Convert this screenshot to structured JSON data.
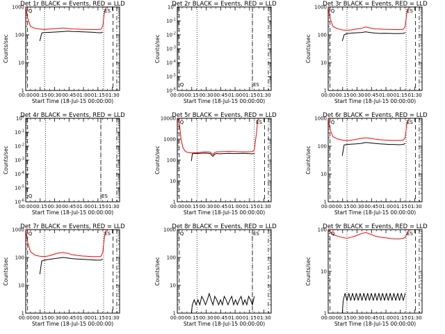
{
  "chart_data": [
    {
      "type": "line",
      "title": "Det 1r  BLACK = Events, RED = LLD",
      "xlabel": "Start Time (18-Jul-15 00:00:00)",
      "ylabel": "Counts/sec",
      "yscale": "log",
      "ylim": [
        1,
        1000
      ],
      "ytick_labels": [
        "1",
        "10",
        "100",
        "1000"
      ],
      "xlim": [
        0,
        100
      ],
      "xtick_labels": [
        "00:00",
        "00:15",
        "00:30",
        "00:45",
        "01:00",
        "01:15",
        "01:30"
      ],
      "markers": {
        "dash": [
          2,
          93
        ],
        "dot": [
          20,
          83
        ],
        "dashdot": [
          97
        ],
        "labels": [
          {
            "text": "Q",
            "x": 2
          },
          {
            "text": "ES",
            "x": 83
          }
        ]
      },
      "series": [
        {
          "color": "#000000",
          "x": [
            15,
            17,
            18,
            20,
            25,
            30,
            35,
            40,
            45,
            50,
            55,
            60,
            65,
            70,
            75,
            80,
            82
          ],
          "y": [
            60,
            115,
            118,
            120,
            122,
            125,
            128,
            130,
            135,
            132,
            130,
            128,
            126,
            124,
            120,
            118,
            125
          ]
        },
        {
          "color": "#ff0000",
          "x": [
            0,
            2,
            5,
            10,
            15,
            20,
            25,
            30,
            35,
            40,
            45,
            50,
            55,
            60,
            65,
            70,
            75,
            80,
            82,
            84,
            86
          ],
          "y": [
            1000,
            400,
            200,
            170,
            160,
            155,
            160,
            165,
            170,
            175,
            168,
            162,
            160,
            158,
            156,
            155,
            154,
            158,
            200,
            700,
            1000
          ]
        }
      ]
    },
    {
      "type": "line",
      "title": "Det 2r  BLACK = Events, RED = LLD",
      "xlabel": "Start Time (18-Jul-15 00:00:00)",
      "ylabel": "Counts/sec",
      "yscale": "log",
      "ylim": [
        1e-06,
        1
      ],
      "ytick_labels": [
        "10^-6",
        "10^-5",
        "10^-4",
        "10^-3",
        "10^-2",
        "10^-1",
        "10^0"
      ],
      "xlim": [
        0,
        100
      ],
      "xtick_labels": [
        "00:00",
        "00:15",
        "00:30",
        "00:45",
        "01:00",
        "01:15",
        "01:30"
      ],
      "markers": {
        "dash": [
          2,
          80
        ],
        "dot": [
          21,
          80
        ],
        "dashdot": [
          97
        ],
        "labels": [
          {
            "text": "Q",
            "x": 2
          },
          {
            "text": "ES",
            "x": 80
          }
        ]
      },
      "series": []
    },
    {
      "type": "line",
      "title": "Det 3r  BLACK = Events, RED = LLD",
      "xlabel": "Start Time (18-Jul-15 00:00:00)",
      "ylabel": "Counts/sec",
      "yscale": "log",
      "ylim": [
        1,
        1000
      ],
      "ytick_labels": [
        "1",
        "10",
        "100",
        "1000"
      ],
      "xlim": [
        0,
        100
      ],
      "xtick_labels": [
        "00:00",
        "00:15",
        "00:30",
        "00:45",
        "01:00",
        "01:15",
        "01:30"
      ],
      "markers": {
        "dash": [
          2,
          93
        ],
        "dot": [
          20,
          83
        ],
        "dashdot": [
          97
        ],
        "labels": [
          {
            "text": "Q",
            "x": 2
          },
          {
            "text": "ES",
            "x": 83
          }
        ]
      },
      "series": [
        {
          "color": "#000000",
          "x": [
            15,
            17,
            20,
            25,
            30,
            35,
            40,
            45,
            50,
            55,
            60,
            65,
            70,
            75,
            80,
            82
          ],
          "y": [
            60,
            100,
            110,
            115,
            118,
            120,
            128,
            120,
            115,
            112,
            113,
            112,
            110,
            110,
            112,
            120
          ]
        },
        {
          "color": "#ff0000",
          "x": [
            0,
            2,
            5,
            10,
            15,
            20,
            25,
            30,
            35,
            40,
            45,
            50,
            55,
            60,
            65,
            70,
            75,
            80,
            82,
            84,
            86
          ],
          "y": [
            1000,
            400,
            200,
            165,
            150,
            145,
            150,
            160,
            170,
            190,
            175,
            162,
            160,
            158,
            156,
            154,
            153,
            158,
            200,
            700,
            1000
          ]
        }
      ]
    },
    {
      "type": "line",
      "title": "Det 4r  BLACK = Events, RED = LLD",
      "xlabel": "Start Time (18-Jul-15 00:00:00)",
      "ylabel": "Counts/sec",
      "yscale": "log",
      "ylim": [
        1e-06,
        1
      ],
      "ytick_labels": [
        "10^-6",
        "10^-5",
        "10^-4",
        "10^-3",
        "10^-2",
        "10^-1",
        "10^0"
      ],
      "xlim": [
        0,
        100
      ],
      "xtick_labels": [
        "00:00",
        "00:15",
        "00:30",
        "00:45",
        "01:00",
        "01:15",
        "01:30"
      ],
      "markers": {
        "dash": [
          2,
          80
        ],
        "dot": [
          21,
          80
        ],
        "dashdot": [
          97
        ],
        "labels": [
          {
            "text": "Q",
            "x": 2
          },
          {
            "text": "ES",
            "x": 80
          }
        ]
      },
      "series": []
    },
    {
      "type": "line",
      "title": "Det 5r  BLACK = Events, RED = LLD",
      "xlabel": "Start Time (18-Jul-15 00:00:00)",
      "ylabel": "Counts/sec",
      "yscale": "log",
      "ylim": [
        1,
        10000
      ],
      "ytick_labels": [
        "1",
        "10",
        "100",
        "1000",
        "10000"
      ],
      "xlim": [
        0,
        100
      ],
      "xtick_labels": [
        "00:00",
        "00:15",
        "00:30",
        "00:45",
        "01:00",
        "01:15",
        "01:30"
      ],
      "markers": {
        "dash": [
          2,
          93
        ],
        "dot": [
          21,
          82
        ],
        "dashdot": [
          97
        ],
        "labels": [
          {
            "text": "Q",
            "x": 2
          },
          {
            "text": "ES",
            "x": 83
          }
        ]
      },
      "series": [
        {
          "color": "#000000",
          "x": [
            15,
            16,
            18,
            20,
            25,
            30,
            35,
            38,
            40,
            42,
            45,
            50,
            55,
            60,
            65,
            70,
            75,
            80,
            82
          ],
          "y": [
            90,
            200,
            205,
            205,
            210,
            215,
            205,
            150,
            195,
            205,
            200,
            205,
            210,
            205,
            205,
            210,
            205,
            200,
            210
          ]
        },
        {
          "color": "#ff0000",
          "x": [
            0,
            2,
            4,
            6,
            8,
            10,
            15,
            20,
            25,
            30,
            35,
            38,
            40,
            42,
            45,
            50,
            55,
            60,
            65,
            70,
            75,
            80,
            82,
            84,
            86
          ],
          "y": [
            10000,
            7000,
            1000,
            400,
            280,
            240,
            220,
            225,
            235,
            245,
            240,
            185,
            230,
            245,
            250,
            255,
            260,
            255,
            250,
            250,
            245,
            255,
            300,
            1500,
            10000
          ]
        }
      ]
    },
    {
      "type": "line",
      "title": "Det 6r  BLACK = Events, RED = LLD",
      "xlabel": "Start Time (18-Jul-15 00:00:00)",
      "ylabel": "Counts/sec",
      "yscale": "log",
      "ylim": [
        1,
        1000
      ],
      "ytick_labels": [
        "1",
        "10",
        "100",
        "1000"
      ],
      "xlim": [
        0,
        100
      ],
      "xtick_labels": [
        "00:00",
        "00:15",
        "00:30",
        "00:45",
        "01:00",
        "01:15",
        "01:30"
      ],
      "markers": {
        "dash": [
          2,
          93
        ],
        "dot": [
          20,
          83
        ],
        "dashdot": [
          97
        ],
        "labels": [
          {
            "text": "Q",
            "x": 2
          },
          {
            "text": "ES",
            "x": 83
          }
        ]
      },
      "series": [
        {
          "color": "#000000",
          "x": [
            15,
            17,
            20,
            25,
            30,
            35,
            40,
            45,
            50,
            55,
            60,
            65,
            70,
            75,
            80,
            82
          ],
          "y": [
            45,
            110,
            115,
            118,
            120,
            125,
            135,
            130,
            125,
            120,
            118,
            115,
            115,
            112,
            115,
            125
          ]
        },
        {
          "color": "#ff0000",
          "x": [
            0,
            2,
            5,
            10,
            15,
            20,
            25,
            30,
            35,
            40,
            45,
            50,
            55,
            60,
            65,
            70,
            75,
            80,
            82,
            84,
            86
          ],
          "y": [
            1000,
            400,
            220,
            180,
            165,
            158,
            165,
            175,
            190,
            200,
            190,
            178,
            170,
            165,
            162,
            160,
            160,
            165,
            200,
            700,
            1000
          ]
        }
      ]
    },
    {
      "type": "line",
      "title": "Det 7r  BLACK = Events, RED = LLD",
      "xlabel": "Start Time (18-Jul-15 00:00:00)",
      "ylabel": "Counts/sec",
      "yscale": "log",
      "ylim": [
        1,
        1000
      ],
      "ytick_labels": [
        "1",
        "10",
        "100",
        "1000"
      ],
      "xlim": [
        0,
        100
      ],
      "xtick_labels": [
        "00:00",
        "00:15",
        "00:30",
        "00:45",
        "01:00",
        "01:15",
        "01:30"
      ],
      "markers": {
        "dash": [
          2,
          93
        ],
        "dot": [
          20,
          83
        ],
        "dashdot": [
          97
        ],
        "labels": [
          {
            "text": "Q",
            "x": 2
          },
          {
            "text": "ES",
            "x": 83
          }
        ]
      },
      "series": [
        {
          "color": "#000000",
          "x": [
            15,
            17,
            20,
            25,
            30,
            35,
            40,
            45,
            50,
            55,
            60,
            65,
            70,
            75,
            80,
            82
          ],
          "y": [
            25,
            75,
            80,
            85,
            90,
            95,
            100,
            95,
            90,
            88,
            86,
            84,
            82,
            80,
            80,
            88
          ]
        },
        {
          "color": "#ff0000",
          "x": [
            0,
            2,
            5,
            10,
            15,
            20,
            25,
            30,
            35,
            40,
            45,
            50,
            55,
            60,
            65,
            70,
            75,
            80,
            82,
            84,
            86
          ],
          "y": [
            1000,
            350,
            160,
            120,
            110,
            108,
            115,
            130,
            145,
            150,
            140,
            125,
            118,
            113,
            110,
            108,
            107,
            108,
            150,
            600,
            1000
          ]
        }
      ]
    },
    {
      "type": "line",
      "title": "Det 8r  BLACK = Events, RED = LLD",
      "xlabel": "Start Time (18-Jul-15 00:00:00)",
      "ylabel": "Counts/sec",
      "yscale": "log",
      "ylim": [
        1,
        1000
      ],
      "ytick_labels": [
        "1",
        "10",
        "100",
        "1000"
      ],
      "xlim": [
        0,
        100
      ],
      "xtick_labels": [
        "00:00",
        "00:15",
        "00:30",
        "00:45",
        "01:00",
        "01:15",
        "01:30"
      ],
      "markers": {
        "dash": [
          2,
          80
        ],
        "dot": [
          21,
          80
        ],
        "dashdot": [
          97
        ],
        "labels": [
          {
            "text": "Q",
            "x": 2
          },
          {
            "text": "ES",
            "x": 80
          }
        ]
      },
      "series": [
        {
          "color": "#000000",
          "x": [
            15,
            16,
            18,
            20,
            22,
            24,
            26,
            28,
            30,
            32,
            34,
            36,
            38,
            40,
            42,
            44,
            46,
            48,
            50,
            52,
            54,
            56,
            58,
            60,
            62,
            64,
            66,
            68,
            70,
            72,
            74,
            76,
            78,
            80,
            82
          ],
          "y": [
            1,
            2,
            3,
            2,
            3,
            2,
            4,
            3,
            2,
            3,
            5,
            3,
            2,
            4,
            3,
            2,
            3,
            2,
            4,
            3,
            2,
            3,
            4,
            2,
            3,
            2,
            3,
            4,
            2,
            3,
            2,
            4,
            3,
            2,
            4
          ]
        }
      ]
    },
    {
      "type": "line",
      "title": "Det 9r  BLACK = Events, RED = LLD",
      "xlabel": "Start Time (18-Jul-15 00:00:00)",
      "ylabel": "Counts/sec",
      "yscale": "log",
      "ylim": [
        1,
        100
      ],
      "ytick_labels": [
        "1",
        "10",
        "100"
      ],
      "xlim": [
        0,
        100
      ],
      "xtick_labels": [
        "00:00",
        "00:15",
        "00:30",
        "00:45",
        "01:00",
        "01:15",
        "01:30"
      ],
      "markers": {
        "dash": [
          2,
          93
        ],
        "dot": [
          20,
          83
        ],
        "dashdot": [
          97
        ],
        "labels": [
          {
            "text": "Q",
            "x": 2
          },
          {
            "text": "ES",
            "x": 83
          }
        ]
      },
      "series": [
        {
          "color": "#000000",
          "x": [
            15,
            16,
            18,
            20,
            22,
            24,
            26,
            28,
            30,
            32,
            34,
            36,
            38,
            40,
            42,
            44,
            46,
            48,
            50,
            52,
            54,
            56,
            58,
            60,
            62,
            64,
            66,
            68,
            70,
            72,
            74,
            76,
            78,
            80,
            82
          ],
          "y": [
            1,
            2,
            3,
            2,
            3,
            2,
            3,
            2,
            3,
            2,
            3,
            2,
            3,
            2,
            3,
            2,
            3,
            2,
            3,
            2,
            3,
            2,
            3,
            2,
            3,
            2,
            3,
            2,
            3,
            2,
            3,
            2,
            3,
            2,
            3
          ]
        },
        {
          "color": "#ff0000",
          "x": [
            0,
            3,
            6,
            10,
            15,
            20,
            25,
            30,
            35,
            40,
            45,
            50,
            55,
            60,
            65,
            70,
            75,
            80,
            82,
            84,
            86
          ],
          "y": [
            100,
            85,
            75,
            70,
            65,
            62,
            66,
            72,
            80,
            85,
            78,
            70,
            66,
            64,
            62,
            60,
            60,
            62,
            65,
            80,
            100
          ]
        }
      ]
    }
  ]
}
